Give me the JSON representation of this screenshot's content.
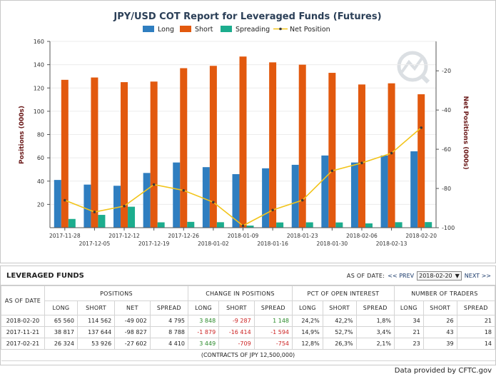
{
  "chart_data": {
    "type": "bar",
    "title": "JPY/USD COT Report for Leveraged Funds (Futures)",
    "ylabel": "Positions (000s)",
    "y2label": "Net Positions (000s)",
    "ylim": [
      0,
      160
    ],
    "y2lim": [
      -100,
      -5
    ],
    "yticks": [
      20,
      40,
      60,
      80,
      100,
      120,
      140,
      160
    ],
    "y2ticks": [
      -20,
      -40,
      -60,
      -80,
      -100
    ],
    "legend_position": "top",
    "categories": [
      "2017-11-28",
      "2017-12-05",
      "2017-12-12",
      "2017-12-19",
      "2017-12-26",
      "2018-01-02",
      "2018-01-09",
      "2018-01-16",
      "2018-01-23",
      "2018-01-30",
      "2018-02-06",
      "2018-02-13",
      "2018-02-20"
    ],
    "series": [
      {
        "name": "Long",
        "type": "bar",
        "axis": "left",
        "color": "#2f7ec0",
        "values": [
          41,
          37,
          36,
          47,
          56,
          52,
          46,
          51,
          54,
          62,
          56,
          62,
          65.6
        ]
      },
      {
        "name": "Short",
        "type": "bar",
        "axis": "left",
        "color": "#e2590e",
        "values": [
          127,
          129,
          125,
          125.5,
          137,
          139,
          147,
          142,
          140,
          133,
          123,
          124,
          114.6
        ]
      },
      {
        "name": "Spreading",
        "type": "bar",
        "axis": "left",
        "color": "#1cad8e",
        "values": [
          7.5,
          11,
          18,
          4.6,
          5,
          4.7,
          1.8,
          4.5,
          4.6,
          4.5,
          3.7,
          4.7,
          4.8
        ]
      },
      {
        "name": "Net Position",
        "type": "line",
        "axis": "right",
        "color": "#f2c41a",
        "values": [
          -86,
          -92,
          -89,
          -78,
          -81,
          -87,
          -99,
          -91,
          -86,
          -71,
          -67,
          -62,
          -49
        ]
      }
    ]
  },
  "table": {
    "title": "LEVERAGED FUNDS",
    "as_of_label": "AS OF DATE:",
    "prev_label": "<< PREV",
    "selected_date": "2018-02-20",
    "next_label": "NEXT >>",
    "date_header": "AS OF DATE",
    "groups": [
      "POSITIONS",
      "CHANGE IN POSITIONS",
      "PCT OF OPEN INTEREST",
      "NUMBER OF TRADERS"
    ],
    "subheaders": [
      "LONG",
      "SHORT",
      "NET",
      "SPREAD",
      "LONG",
      "SHORT",
      "SPREAD",
      "LONG",
      "SHORT",
      "SPREAD",
      "LONG",
      "SHORT",
      "SPREAD"
    ],
    "rows": [
      {
        "date": "2018-02-20",
        "cells": [
          "65 560",
          "114 562",
          "-49 002",
          "4 795",
          "3 848",
          "-9 287",
          "1 148",
          "24,2%",
          "42,2%",
          "1,8%",
          "34",
          "26",
          "21"
        ]
      },
      {
        "date": "2017-11-21",
        "cells": [
          "38 817",
          "137 644",
          "-98 827",
          "8 788",
          "-1 879",
          "-16 414",
          "-1 594",
          "14,9%",
          "52,7%",
          "3,4%",
          "21",
          "43",
          "18"
        ]
      },
      {
        "date": "2017-02-21",
        "cells": [
          "26 324",
          "53 926",
          "-27 602",
          "4 410",
          "3 449",
          "-709",
          "-754",
          "12,8%",
          "26,3%",
          "2,1%",
          "23",
          "39",
          "14"
        ]
      }
    ],
    "change_signs": [
      [
        "pos",
        "neg",
        "pos"
      ],
      [
        "neg",
        "neg",
        "neg"
      ],
      [
        "pos",
        "neg",
        "neg"
      ]
    ],
    "note": "(CONTRACTS OF JPY 12,500,000)"
  },
  "footer": "Data provided by CFTC.gov"
}
